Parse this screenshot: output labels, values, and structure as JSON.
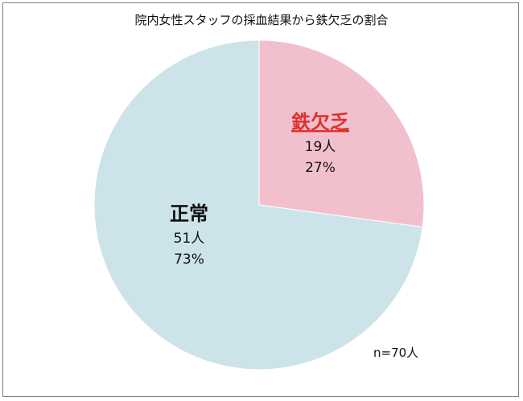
{
  "chart_data": {
    "type": "pie",
    "title": "院内女性スタッフの採血結果から鉄欠乏の割合",
    "slices": [
      {
        "label": "鉄欠乏",
        "count_label": "19人",
        "percent_label": "27%",
        "value": 19,
        "percent": 27,
        "color": "#f2c0cd",
        "label_color": "#e0312f"
      },
      {
        "label": "正常",
        "count_label": "51人",
        "percent_label": "73%",
        "value": 51,
        "percent": 73,
        "color": "#cce3ea",
        "label_color": "#111111"
      }
    ],
    "annotation": "n=70人"
  }
}
